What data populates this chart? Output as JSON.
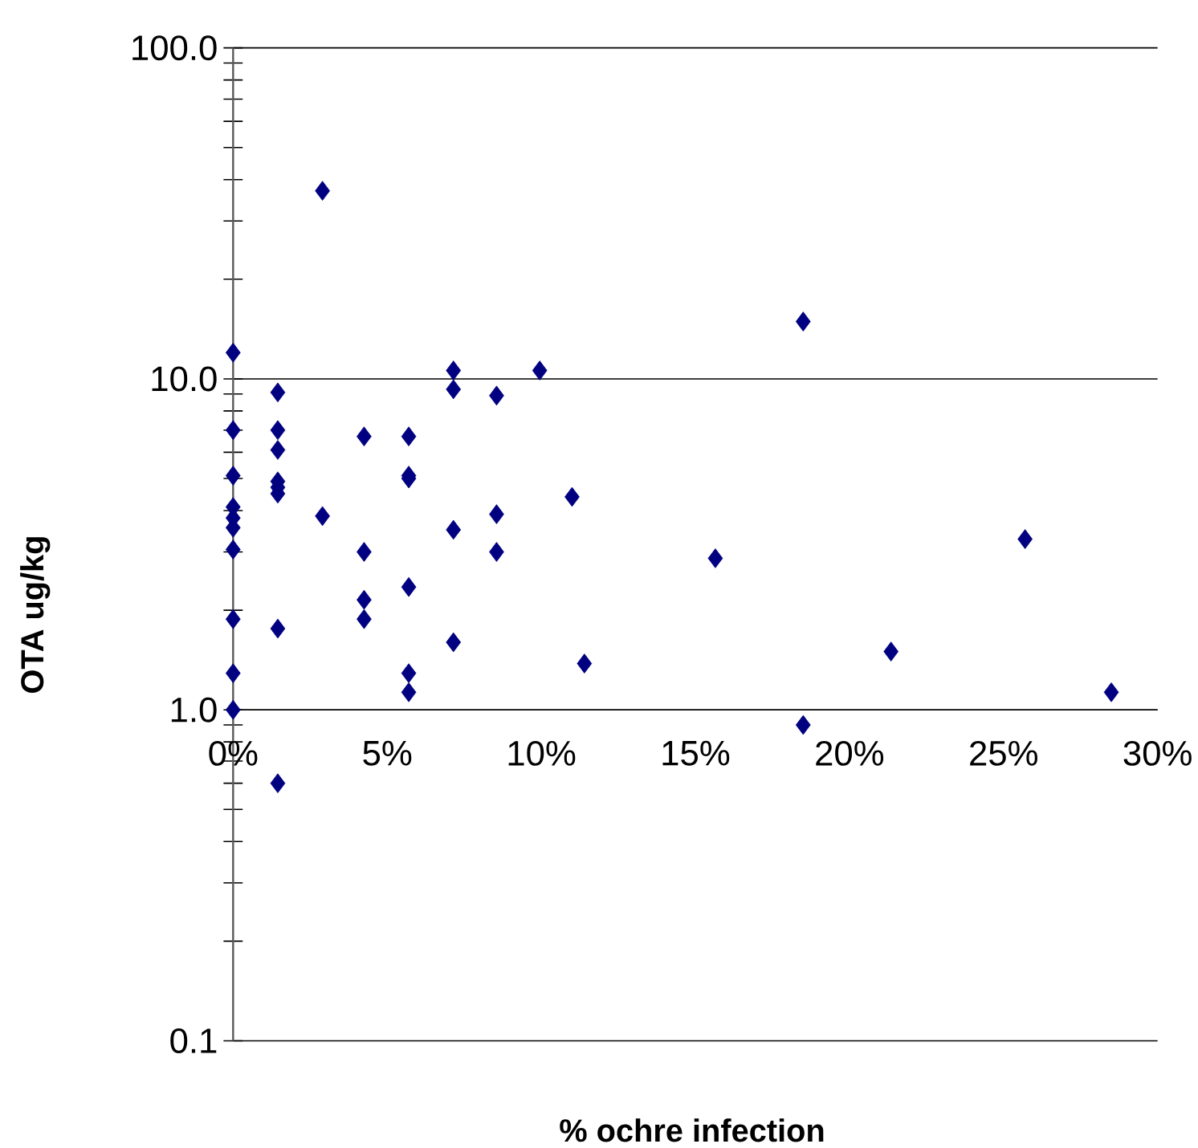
{
  "chart_data": {
    "type": "scatter",
    "xlabel": "% ochre infection",
    "ylabel": "OTA ug/kg",
    "color": "#000080",
    "marker": "diamond",
    "log": "y",
    "grid": "y",
    "xlim": [
      0,
      30
    ],
    "xticks": [
      {
        "value": 0,
        "label": "0%"
      },
      {
        "value": 5,
        "label": "5%"
      },
      {
        "value": 10,
        "label": "10%"
      },
      {
        "value": 15,
        "label": "15%"
      },
      {
        "value": 20,
        "label": "20%"
      },
      {
        "value": 25,
        "label": "25%"
      },
      {
        "value": 30,
        "label": "30%"
      }
    ],
    "ylim": [
      0.1,
      100
    ],
    "yticks": [
      {
        "value": 0.1,
        "label": "0.1"
      },
      {
        "value": 1,
        "label": "1.0"
      },
      {
        "value": 10,
        "label": "10.0"
      },
      {
        "value": 100,
        "label": "100.0"
      }
    ],
    "x": [
      0,
      0,
      0,
      0,
      0,
      0,
      0,
      0,
      0,
      0,
      1.45,
      1.45,
      1.45,
      1.45,
      1.45,
      1.45,
      1.45,
      1.45,
      2.9,
      2.9,
      4.25,
      4.25,
      4.25,
      4.25,
      5.7,
      5.7,
      5.7,
      5.7,
      5.7,
      5.7,
      7.15,
      7.15,
      7.15,
      7.15,
      8.55,
      8.55,
      8.55,
      9.95,
      11.0,
      11.4,
      15.65,
      18.5,
      18.5,
      21.35,
      25.7,
      28.5
    ],
    "values": [
      12.0,
      7.0,
      5.1,
      4.1,
      3.8,
      3.55,
      3.05,
      1.88,
      1.29,
      1.0,
      9.1,
      7.0,
      6.1,
      4.9,
      4.7,
      4.5,
      1.76,
      0.6,
      37,
      3.85,
      6.7,
      3.0,
      2.15,
      1.88,
      6.7,
      5.1,
      5.0,
      2.35,
      1.29,
      1.13,
      10.6,
      9.3,
      3.5,
      1.6,
      8.9,
      3.9,
      3.0,
      10.6,
      4.4,
      1.38,
      2.87,
      14.9,
      0.9,
      1.5,
      3.28,
      1.13
    ]
  }
}
